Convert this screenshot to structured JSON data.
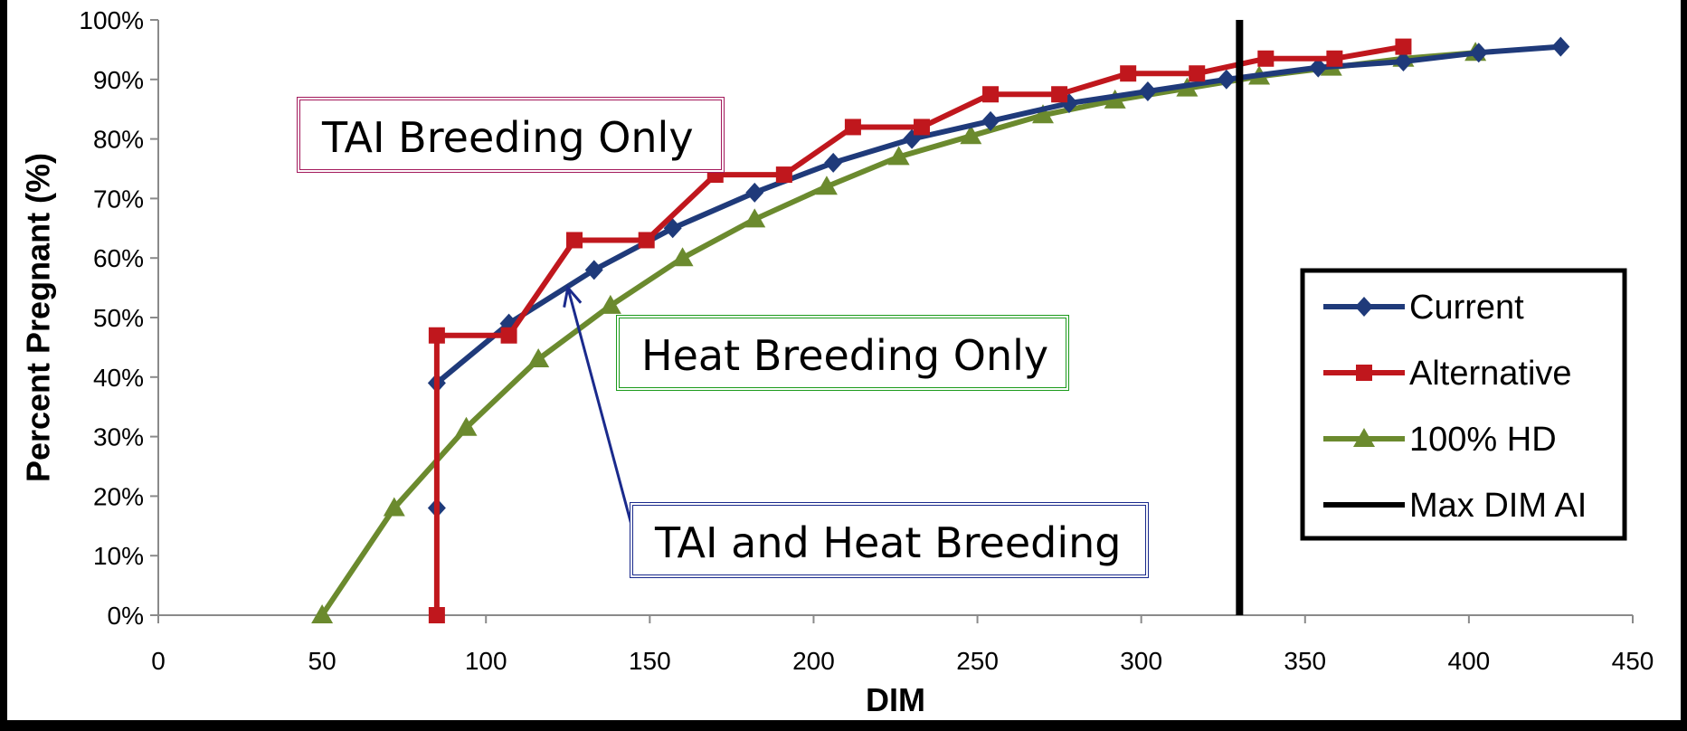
{
  "chart_data": {
    "type": "line",
    "xlabel": "DIM",
    "ylabel": "Percent Pregnant (%)",
    "xlim": [
      0,
      450
    ],
    "ylim": [
      0,
      100
    ],
    "x_ticks": [
      "0",
      "50",
      "100",
      "150",
      "200",
      "250",
      "300",
      "350",
      "400",
      "450"
    ],
    "y_ticks": [
      "0%",
      "10%",
      "20%",
      "30%",
      "40%",
      "50%",
      "60%",
      "70%",
      "80%",
      "90%",
      "100%"
    ],
    "legend_position": "right",
    "series": [
      {
        "name": "Current",
        "color": "#1f3a7a",
        "marker": "diamond",
        "extra_points": [
          {
            "x": 85,
            "y": 18
          }
        ],
        "points": [
          {
            "x": 85,
            "y": 39
          },
          {
            "x": 107,
            "y": 49
          },
          {
            "x": 133,
            "y": 58
          },
          {
            "x": 157,
            "y": 65
          },
          {
            "x": 182,
            "y": 71
          },
          {
            "x": 206,
            "y": 76
          },
          {
            "x": 230,
            "y": 80
          },
          {
            "x": 254,
            "y": 83
          },
          {
            "x": 278,
            "y": 86
          },
          {
            "x": 302,
            "y": 88
          },
          {
            "x": 326,
            "y": 90
          },
          {
            "x": 354,
            "y": 92
          },
          {
            "x": 380,
            "y": 93
          },
          {
            "x": 403,
            "y": 94.5
          },
          {
            "x": 428,
            "y": 95.5
          }
        ]
      },
      {
        "name": "Alternative",
        "color": "#c0171d",
        "marker": "square",
        "points": [
          {
            "x": 85,
            "y": 0
          },
          {
            "x": 85,
            "y": 47
          },
          {
            "x": 107,
            "y": 47
          },
          {
            "x": 127,
            "y": 63
          },
          {
            "x": 149,
            "y": 63
          },
          {
            "x": 170,
            "y": 74
          },
          {
            "x": 191,
            "y": 74
          },
          {
            "x": 212,
            "y": 82
          },
          {
            "x": 233,
            "y": 82
          },
          {
            "x": 254,
            "y": 87.5
          },
          {
            "x": 275,
            "y": 87.5
          },
          {
            "x": 296,
            "y": 91
          },
          {
            "x": 317,
            "y": 91
          },
          {
            "x": 338,
            "y": 93.5
          },
          {
            "x": 359,
            "y": 93.5
          },
          {
            "x": 380,
            "y": 95.5
          }
        ]
      },
      {
        "name": "100% HD",
        "color": "#6b8a2e",
        "marker": "triangle",
        "points": [
          {
            "x": 50,
            "y": 0
          },
          {
            "x": 72,
            "y": 18
          },
          {
            "x": 94,
            "y": 31.5
          },
          {
            "x": 116,
            "y": 43
          },
          {
            "x": 138,
            "y": 52
          },
          {
            "x": 160,
            "y": 60
          },
          {
            "x": 182,
            "y": 66.5
          },
          {
            "x": 204,
            "y": 72
          },
          {
            "x": 226,
            "y": 77
          },
          {
            "x": 248,
            "y": 80.5
          },
          {
            "x": 270,
            "y": 84
          },
          {
            "x": 292,
            "y": 86.5
          },
          {
            "x": 314,
            "y": 88.5
          },
          {
            "x": 336,
            "y": 90.5
          },
          {
            "x": 358,
            "y": 92
          },
          {
            "x": 380,
            "y": 93.5
          },
          {
            "x": 402,
            "y": 94.5
          }
        ]
      },
      {
        "name": "Max DIM AI",
        "color": "#000000",
        "marker": "none",
        "vertical_x": 330
      }
    ],
    "annotations": [
      {
        "text": "TAI Breeding Only",
        "border_color": "#a3195b"
      },
      {
        "text": "Heat Breeding Only",
        "border_color": "#1a9a1a"
      },
      {
        "text": "TAI and Heat Breeding",
        "border_color": "#1a2a8c",
        "arrow_to": {
          "x": 125,
          "y": 55
        }
      }
    ]
  }
}
